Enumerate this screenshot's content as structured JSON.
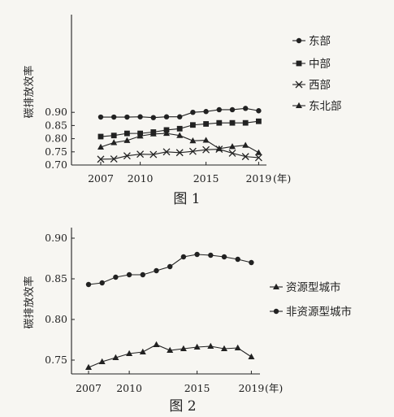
{
  "chart_data": [
    {
      "type": "line",
      "caption": "图 1",
      "ylabel": "碳排放效率",
      "xlabel_unit": "(年)",
      "x": [
        2007,
        2008,
        2009,
        2010,
        2011,
        2012,
        2013,
        2014,
        2015,
        2016,
        2017,
        2018,
        2019
      ],
      "xticks": [
        2007,
        2010,
        2015,
        2019
      ],
      "yticks": [
        "0.70",
        "0.75",
        "0.80",
        "0.85",
        "0.90"
      ],
      "ylim": [
        0.7,
        0.925
      ],
      "legend_position": "right",
      "series": [
        {
          "name": "东部",
          "marker": "circle",
          "values": [
            0.882,
            0.882,
            0.882,
            0.883,
            0.88,
            0.883,
            0.883,
            0.9,
            0.903,
            0.91,
            0.91,
            0.915,
            0.906
          ]
        },
        {
          "name": "中部",
          "marker": "square",
          "values": [
            0.808,
            0.812,
            0.82,
            0.82,
            0.825,
            0.833,
            0.838,
            0.852,
            0.856,
            0.86,
            0.86,
            0.86,
            0.866
          ]
        },
        {
          "name": "西部",
          "marker": "x",
          "values": [
            0.722,
            0.723,
            0.735,
            0.741,
            0.74,
            0.75,
            0.747,
            0.752,
            0.758,
            0.76,
            0.745,
            0.732,
            0.728
          ]
        },
        {
          "name": "东北部",
          "marker": "triangle",
          "values": [
            0.768,
            0.785,
            0.793,
            0.81,
            0.818,
            0.82,
            0.812,
            0.792,
            0.794,
            0.762,
            0.77,
            0.775,
            0.747
          ]
        }
      ]
    },
    {
      "type": "line",
      "caption": "图 2",
      "ylabel": "碳排放效率",
      "xlabel_unit": "(年)",
      "x": [
        2007,
        2008,
        2009,
        2010,
        2011,
        2012,
        2013,
        2014,
        2015,
        2016,
        2017,
        2018,
        2019
      ],
      "xticks": [
        2007,
        2010,
        2015,
        2019
      ],
      "yticks": [
        "0.75",
        "0.80",
        "0.85",
        "0.90"
      ],
      "ylim": [
        0.735,
        0.905
      ],
      "legend_position": "right",
      "series": [
        {
          "name": "资源型城市",
          "marker": "triangle",
          "values": [
            0.741,
            0.748,
            0.753,
            0.758,
            0.76,
            0.769,
            0.762,
            0.764,
            0.766,
            0.767,
            0.764,
            0.765,
            0.754
          ]
        },
        {
          "name": "非资源型城市",
          "marker": "circle",
          "values": [
            0.843,
            0.845,
            0.852,
            0.855,
            0.855,
            0.86,
            0.865,
            0.877,
            0.88,
            0.879,
            0.877,
            0.874,
            0.87
          ]
        }
      ]
    }
  ]
}
